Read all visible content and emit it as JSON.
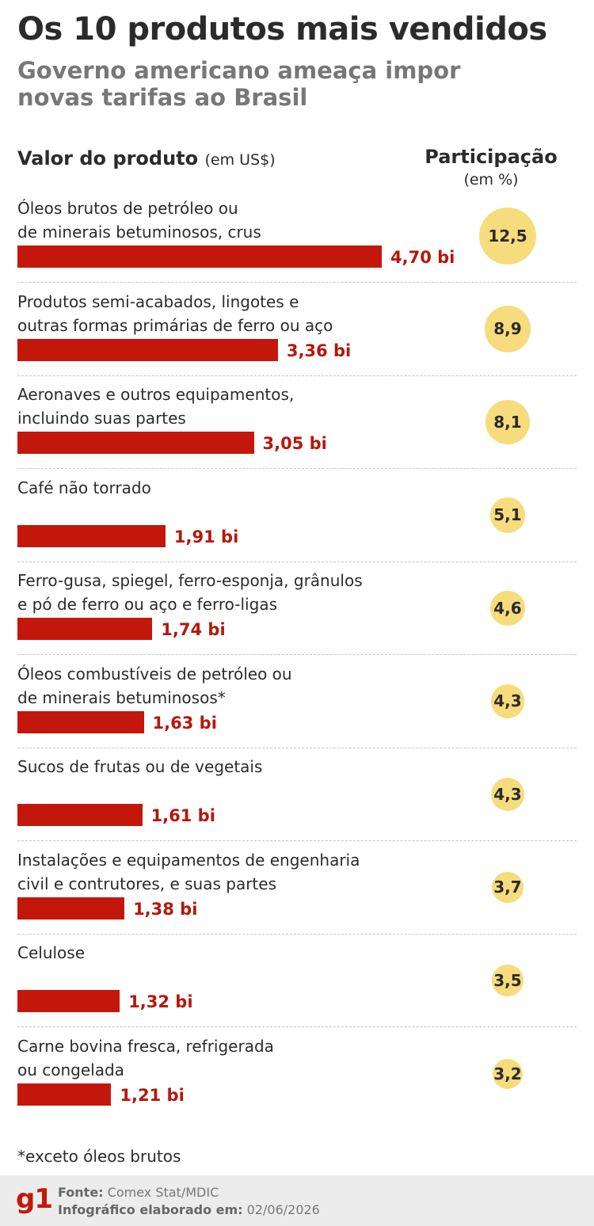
{
  "title": "Os 10 produtos mais vendidos",
  "subtitle": "Governo americano ameaça impor novas tarifas ao Brasil",
  "header": {
    "value_label": "Valor do produto",
    "value_unit": "(em US$)",
    "share_label": "Participação",
    "share_unit": "(em %)"
  },
  "chart_data": {
    "type": "bar",
    "title": "Os 10 produtos mais vendidos",
    "categories": [
      "Óleos brutos de petróleo ou de minerais betuminosos, crus",
      "Produtos semi-acabados, lingotes e outras formas primárias de ferro ou aço",
      "Aeronaves e outros equipamentos, incluindo suas partes",
      "Café não torrado",
      "Ferro-gusa, spiegel, ferro-esponja, grânulos e pó de ferro ou aço e ferro-ligas",
      "Óleos combustíveis de petróleo ou de minerais betuminosos*",
      "Sucos de frutas ou de vegetais",
      "Instalações e equipamentos de engenharia civil e contrutores, e suas partes",
      "Celulose",
      "Carne bovina fresca, refrigerada ou congelada"
    ],
    "labels": [
      [
        "Óleos brutos de petróleo ou",
        "de minerais betuminosos, crus"
      ],
      [
        "Produtos semi-acabados, lingotes e",
        "outras formas primárias de ferro ou aço"
      ],
      [
        "Aeronaves e outros equipamentos,",
        "incluindo suas partes"
      ],
      [
        "Café não torrado"
      ],
      [
        "Ferro-gusa, spiegel, ferro-esponja, grânulos",
        "e pó de ferro ou aço e ferro-ligas"
      ],
      [
        "Óleos combustíveis de petróleo ou",
        "de minerais betuminosos*"
      ],
      [
        "Sucos de frutas ou de vegetais"
      ],
      [
        "Instalações e equipamentos de engenharia",
        "civil e contrutores, e suas partes"
      ],
      [
        "Celulose"
      ],
      [
        "Carne bovina fresca, refrigerada",
        "ou congelada"
      ]
    ],
    "series": [
      {
        "values": [
          4.7,
          3.36,
          3.05,
          1.91,
          1.74,
          1.63,
          1.61,
          1.38,
          1.32,
          1.21
        ],
        "value_labels": [
          "4,70 bi",
          "3,36 bi",
          "3,05 bi",
          "1,91 bi",
          "1,74 bi",
          "1,63 bi",
          "1,61 bi",
          "1,38 bi",
          "1,32 bi",
          "1,21 bi"
        ]
      },
      {
        "values": [
          12.5,
          8.9,
          8.1,
          5.1,
          4.6,
          4.3,
          4.3,
          3.7,
          3.5,
          3.2
        ],
        "value_labels": [
          "12,5",
          "8,9",
          "8,1",
          "5,1",
          "4,6",
          "4,3",
          "4,3",
          "3,7",
          "3,5",
          "3,2"
        ]
      }
    ],
    "colors": {
      "bar": "#c4170c",
      "value_text": "#b5170c",
      "circle": "#f6dc7c"
    }
  },
  "note": "*exceto óleos brutos",
  "footer": {
    "logo": "g1",
    "source_label": "Fonte:",
    "source_value": "Comex Stat/MDIC",
    "date_label": "Infográfico elaborado em:",
    "date_value": "02/06/2026"
  }
}
